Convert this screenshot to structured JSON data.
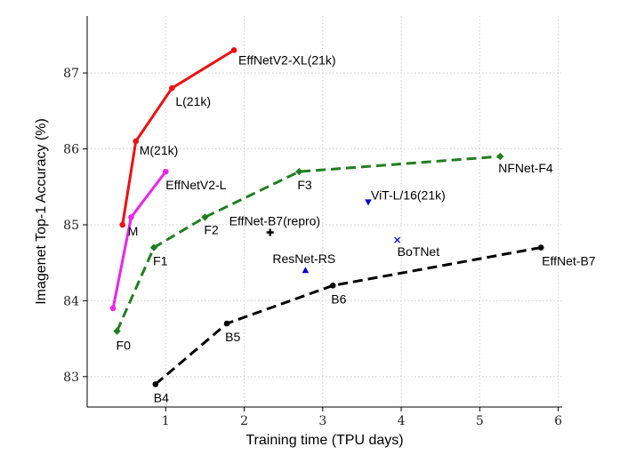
{
  "chart_data": {
    "type": "scatter",
    "xlabel": "Training time (TPU days)",
    "ylabel": "Imagenet Top-1 Accuracy (%)",
    "xlim": [
      0.0,
      6.05
    ],
    "ylim": [
      82.6,
      87.75
    ],
    "x_ticks": [
      "1",
      "2",
      "3",
      "4",
      "5",
      "6"
    ],
    "y_ticks": [
      "83",
      "84",
      "85",
      "86",
      "87"
    ],
    "grid": true,
    "series": [
      {
        "style": "solid",
        "color": "#ee1111",
        "marker": "circle",
        "points": [
          {
            "x": 0.45,
            "y": 85.0,
            "label": "M"
          },
          {
            "x": 0.62,
            "y": 86.1,
            "label": "M(21k)"
          },
          {
            "x": 1.08,
            "y": 86.8,
            "label": "L(21k)"
          },
          {
            "x": 1.87,
            "y": 87.3,
            "label": "EffNetV2-XL(21k)"
          }
        ]
      },
      {
        "style": "solid",
        "color": "#ee22ee",
        "marker": "circle",
        "points": [
          {
            "x": 0.33,
            "y": 83.9,
            "label": ""
          },
          {
            "x": 0.56,
            "y": 85.1,
            "label": ""
          },
          {
            "x": 1.0,
            "y": 85.7,
            "label": "EffNetV2-L"
          }
        ]
      },
      {
        "style": "dashed",
        "color": "#1f7f1f",
        "marker": "diamond",
        "points": [
          {
            "x": 0.38,
            "y": 83.6,
            "label": "F0"
          },
          {
            "x": 0.85,
            "y": 84.7,
            "label": "F1"
          },
          {
            "x": 1.5,
            "y": 85.1,
            "label": "F2"
          },
          {
            "x": 2.7,
            "y": 85.7,
            "label": "F3"
          },
          {
            "x": 5.26,
            "y": 85.9,
            "label": "NFNet-F4"
          }
        ]
      },
      {
        "style": "dashed",
        "color": "#000000",
        "marker": "circle",
        "points": [
          {
            "x": 0.87,
            "y": 82.9,
            "label": "B4"
          },
          {
            "x": 1.78,
            "y": 83.7,
            "label": "B5"
          },
          {
            "x": 3.13,
            "y": 84.2,
            "label": "B6"
          },
          {
            "x": 5.78,
            "y": 84.7,
            "label": "EffNet-B7"
          }
        ]
      }
    ],
    "points": [
      {
        "x": 2.33,
        "y": 84.9,
        "label": "EffNet-B7(repro)",
        "marker": "plus",
        "color": "#000000"
      },
      {
        "x": 2.78,
        "y": 84.4,
        "label": "ResNet-RS",
        "marker": "triangle-up",
        "color": "#0000dd"
      },
      {
        "x": 3.58,
        "y": 85.3,
        "label": "ViT-L/16(21k)",
        "marker": "triangle-down",
        "color": "#0000dd"
      },
      {
        "x": 3.95,
        "y": 84.8,
        "label": "BoTNet",
        "marker": "x",
        "color": "#0000dd"
      }
    ]
  }
}
